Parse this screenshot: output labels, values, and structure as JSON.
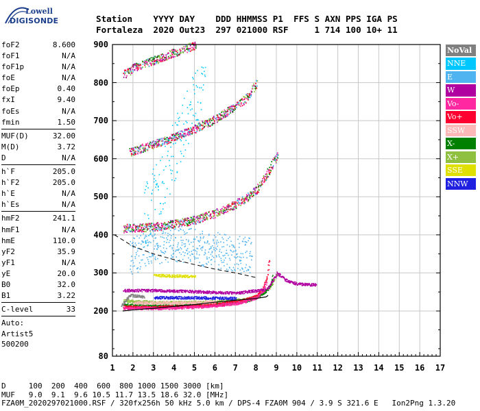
{
  "logo": {
    "line1": "Lowell",
    "line2": "DIGISONDE"
  },
  "header": {
    "line1": "Station    YYYY DAY    DDD HHMMSS P1  FFS S AXN PPS IGA PS",
    "line2": "Fortaleza  2020 Out23  297 021000 RSF     1 714 100 10+ 11"
  },
  "params": [
    {
      "name": "foF2",
      "value": "8.600"
    },
    {
      "name": "foF1",
      "value": "N/A"
    },
    {
      "name": "foF1p",
      "value": "N/A"
    },
    {
      "name": "foE",
      "value": "N/A"
    },
    {
      "name": "foEp",
      "value": "0.40"
    },
    {
      "name": "fxI",
      "value": "9.40"
    },
    {
      "name": "foEs",
      "value": "N/A"
    },
    {
      "name": "fmin",
      "value": "1.50"
    },
    {
      "sep": true
    },
    {
      "name": "MUF(D)",
      "value": "32.00"
    },
    {
      "name": "M(D)",
      "value": "3.72"
    },
    {
      "name": "D",
      "value": "N/A"
    },
    {
      "sep": true
    },
    {
      "name": "h`F",
      "value": "205.0"
    },
    {
      "name": "h`F2",
      "value": "205.0"
    },
    {
      "name": "h`E",
      "value": "N/A"
    },
    {
      "name": "h`Es",
      "value": "N/A"
    },
    {
      "sep": true
    },
    {
      "name": "hmF2",
      "value": "241.1"
    },
    {
      "name": "hmF1",
      "value": "N/A"
    },
    {
      "name": "hmE",
      "value": "110.0"
    },
    {
      "name": "yF2",
      "value": "35.9"
    },
    {
      "name": "yF1",
      "value": "N/A"
    },
    {
      "name": "yE",
      "value": "20.0"
    },
    {
      "name": "B0",
      "value": "32.0"
    },
    {
      "name": "B1",
      "value": "3.22"
    },
    {
      "sep": true
    },
    {
      "name": "C-level",
      "value": "33"
    },
    {
      "sep": true
    },
    {
      "text": "Auto:"
    },
    {
      "text": "Artist5"
    },
    {
      "text": "500200"
    }
  ],
  "legend": [
    {
      "label": "NoVal",
      "bg": "#808080",
      "fg": "#ffffff",
      "bold": true
    },
    {
      "label": "NNE",
      "bg": "#00c8ff",
      "fg": "#ffffff"
    },
    {
      "label": "E",
      "bg": "#50b4f0",
      "fg": "#ffffff"
    },
    {
      "label": "W",
      "bg": "#b000a0",
      "fg": "#ffffff"
    },
    {
      "label": "Vo-",
      "bg": "#ff28a0",
      "fg": "#ffffff"
    },
    {
      "label": "Vo+",
      "bg": "#ff0030",
      "fg": "#ffffff"
    },
    {
      "label": "SSW",
      "bg": "#ffb8b8",
      "fg": "#ffffff"
    },
    {
      "label": "X-",
      "bg": "#008000",
      "fg": "#ffffff"
    },
    {
      "label": "X+",
      "bg": "#90c040",
      "fg": "#ffffff"
    },
    {
      "label": "SSE",
      "bg": "#e0e000",
      "fg": "#ffffff"
    },
    {
      "label": "NNW",
      "bg": "#2020e0",
      "fg": "#ffffff"
    }
  ],
  "footer": {
    "line1": "D     100  200  400  600  800 1000 1500 3000 [km]",
    "line2": "MUF   9.0  9.1  9.6 10.5 11.7 13.5 18.6 32.0 [MHz]",
    "line3": "FZA0M_2020297021000.RSF / 320fx256h 50 kHz 5.0 km / DPS-4 FZA0M 904 / 3.9 S 321.6 E   Ion2Png 1.3.20"
  },
  "chart_data": {
    "type": "scatter",
    "x_ticks": [
      "1",
      "2",
      "3",
      "4",
      "5",
      "6",
      "7",
      "8",
      "9",
      "10",
      "11",
      "12",
      "13",
      "14",
      "15",
      "16",
      "17"
    ],
    "y_ticks": [
      "80",
      "200",
      "300",
      "400",
      "500",
      "600",
      "700",
      "800",
      "900"
    ],
    "xlim": [
      1,
      17
    ],
    "ylim_labels": [
      "80",
      "900"
    ],
    "grid": true,
    "legend_position": "right",
    "series": [
      {
        "name": "X+",
        "color": "#90c040",
        "values": [
          [
            1.5,
            228
          ],
          [
            2,
            226
          ],
          [
            3,
            224
          ],
          [
            4,
            223
          ],
          [
            5,
            224
          ],
          [
            6,
            226
          ],
          [
            7,
            229
          ],
          [
            7.5,
            232
          ],
          [
            8,
            240
          ],
          [
            8.5,
            256
          ],
          [
            8.8,
            276
          ],
          [
            9,
            300
          ]
        ]
      },
      {
        "name": "X-",
        "color": "#008000",
        "values": [
          [
            1.5,
            218
          ],
          [
            2,
            216
          ],
          [
            3,
            214
          ],
          [
            4,
            214
          ],
          [
            5,
            216
          ],
          [
            6,
            219
          ],
          [
            7,
            223
          ],
          [
            7.5,
            228
          ],
          [
            8,
            236
          ],
          [
            8.4,
            250
          ],
          [
            8.7,
            272
          ],
          [
            8.8,
            300
          ]
        ]
      },
      {
        "name": "Vo+",
        "color": "#ff0030",
        "values": [
          [
            1.5,
            212
          ],
          [
            2,
            211
          ],
          [
            3,
            211
          ],
          [
            4,
            212
          ],
          [
            5,
            214
          ],
          [
            6,
            218
          ],
          [
            7,
            225
          ],
          [
            7.5,
            231
          ],
          [
            8,
            240
          ],
          [
            8.3,
            258
          ],
          [
            8.5,
            290
          ],
          [
            8.6,
            330
          ],
          [
            8.65,
            340
          ]
        ]
      },
      {
        "name": "Vo-",
        "color": "#ff28a0",
        "values": [
          [
            1.5,
            208
          ],
          [
            2,
            208
          ],
          [
            3,
            208
          ],
          [
            4,
            209
          ],
          [
            5,
            211
          ],
          [
            6,
            215
          ],
          [
            7,
            221
          ],
          [
            7.5,
            227
          ],
          [
            8,
            236
          ],
          [
            8.3,
            252
          ],
          [
            8.5,
            280
          ]
        ]
      },
      {
        "name": "W",
        "color": "#b000a0",
        "values": [
          [
            1.5,
            255
          ],
          [
            3,
            255
          ],
          [
            5,
            252
          ],
          [
            7,
            248
          ],
          [
            8.5,
            258
          ],
          [
            9,
            300
          ],
          [
            9.5,
            280
          ],
          [
            10,
            272
          ],
          [
            10.5,
            270
          ],
          [
            10.9,
            270
          ]
        ]
      },
      {
        "name": "E",
        "color": "#50b4f0",
        "values": [
          [
            1.8,
            340
          ],
          [
            2.5,
            360
          ],
          [
            3,
            370
          ],
          [
            4,
            380
          ],
          [
            5,
            370
          ],
          [
            6,
            360
          ],
          [
            7,
            350
          ],
          [
            7.8,
            345
          ]
        ]
      },
      {
        "name": "NNE",
        "color": "#00c8ff",
        "values": [
          [
            2.5,
            450
          ],
          [
            3,
            500
          ],
          [
            3.5,
            560
          ],
          [
            4,
            620
          ],
          [
            4.5,
            700
          ],
          [
            5,
            760
          ],
          [
            5.5,
            800
          ]
        ]
      },
      {
        "name": "SSE",
        "color": "#e0e000",
        "values": [
          [
            3,
            295
          ],
          [
            4,
            293
          ],
          [
            5,
            292
          ]
        ]
      },
      {
        "name": "NNW",
        "color": "#2020e0",
        "values": [
          [
            3,
            236
          ],
          [
            5,
            236
          ],
          [
            7,
            234
          ]
        ]
      },
      {
        "name": "SSW",
        "color": "#ffb8b8",
        "values": [
          [
            2,
            222
          ],
          [
            4,
            222
          ],
          [
            6,
            224
          ]
        ]
      },
      {
        "name": "NoVal",
        "color": "#808080",
        "values": [
          [
            1.4,
            215
          ],
          [
            1.8,
            242
          ],
          [
            2.5,
            238
          ]
        ]
      }
    ],
    "multihop_traces": [
      {
        "name": "2F",
        "values": [
          [
            1.5,
            418
          ],
          [
            3,
            422
          ],
          [
            4,
            430
          ],
          [
            5,
            440
          ],
          [
            6,
            458
          ],
          [
            7,
            482
          ],
          [
            7.5,
            498
          ],
          [
            8,
            520
          ],
          [
            8.5,
            560
          ],
          [
            9,
            610
          ]
        ]
      },
      {
        "name": "3F",
        "values": [
          [
            1.8,
            618
          ],
          [
            3,
            640
          ],
          [
            4,
            658
          ],
          [
            5,
            680
          ],
          [
            6,
            706
          ],
          [
            7,
            740
          ],
          [
            7.5,
            760
          ],
          [
            8,
            800
          ]
        ]
      },
      {
        "name": "4F",
        "values": [
          [
            1.5,
            822
          ],
          [
            2,
            840
          ],
          [
            3,
            860
          ],
          [
            4,
            880
          ],
          [
            5,
            900
          ]
        ]
      }
    ],
    "profile_curve": [
      [
        1.5,
        200
      ],
      [
        2,
        203
      ],
      [
        3,
        207
      ],
      [
        4,
        212
      ],
      [
        5,
        217
      ],
      [
        6,
        223
      ],
      [
        7,
        228
      ],
      [
        8,
        233
      ],
      [
        8.5,
        237
      ],
      [
        8.6,
        241
      ]
    ],
    "profile_dashed": [
      [
        1.1,
        400
      ],
      [
        2,
        370
      ],
      [
        3,
        350
      ],
      [
        4,
        335
      ],
      [
        5,
        322
      ],
      [
        6,
        310
      ],
      [
        7,
        300
      ],
      [
        8,
        288
      ]
    ]
  }
}
